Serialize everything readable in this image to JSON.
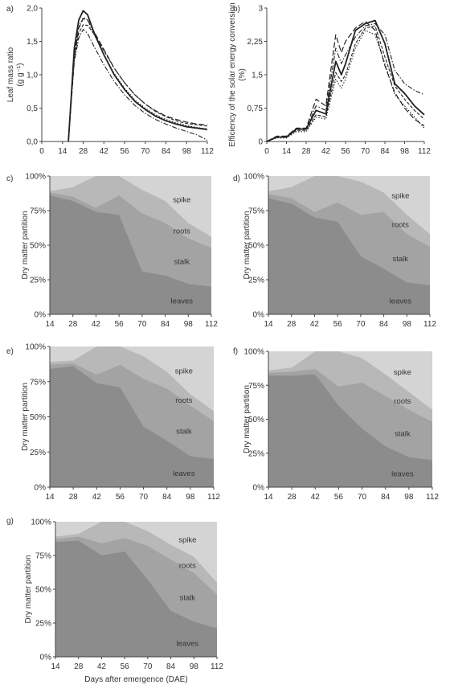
{
  "chart_data": [
    {
      "panel": "a)",
      "type": "line",
      "ylabel_lines": [
        "Leaf mass ratio",
        "(g g⁻¹)"
      ],
      "x_ticks": [
        "0",
        "14",
        "28",
        "42",
        "56",
        "70",
        "84",
        "98",
        "112"
      ],
      "y_ticks": [
        "0,0",
        "0,5",
        "1,0",
        "1,5",
        "2,0"
      ],
      "xlim": [
        0,
        112
      ],
      "ylim": [
        0,
        2.0
      ],
      "series": [
        {
          "style": "solid",
          "x": [
            18,
            20,
            22,
            25,
            28,
            31,
            35,
            42,
            49,
            56,
            63,
            70,
            77,
            84,
            91,
            98,
            105,
            112
          ],
          "y": [
            0,
            0.7,
            1.4,
            1.82,
            1.96,
            1.9,
            1.65,
            1.3,
            1.0,
            0.78,
            0.6,
            0.48,
            0.38,
            0.31,
            0.26,
            0.22,
            0.2,
            0.18
          ]
        },
        {
          "style": "long-dash",
          "x": [
            18,
            20,
            22,
            25,
            28,
            31,
            35,
            42,
            49,
            56,
            63,
            70,
            77,
            84,
            91,
            98,
            105,
            112
          ],
          "y": [
            0,
            0.7,
            1.3,
            1.7,
            1.84,
            1.82,
            1.66,
            1.38,
            1.1,
            0.88,
            0.7,
            0.56,
            0.46,
            0.38,
            0.33,
            0.29,
            0.26,
            0.25
          ]
        },
        {
          "style": "short-dash",
          "x": [
            18,
            20,
            22,
            25,
            28,
            31,
            35,
            42,
            49,
            56,
            63,
            70,
            77,
            84,
            91,
            98,
            105,
            112
          ],
          "y": [
            0,
            0.65,
            1.25,
            1.62,
            1.75,
            1.74,
            1.62,
            1.36,
            1.1,
            0.88,
            0.7,
            0.56,
            0.45,
            0.37,
            0.31,
            0.27,
            0.25,
            0.23
          ]
        },
        {
          "style": "dash-dot",
          "x": [
            18,
            20,
            22,
            25,
            28,
            31,
            35,
            42,
            49,
            56,
            63,
            70,
            77,
            84,
            91,
            98,
            105,
            112
          ],
          "y": [
            0,
            0.6,
            1.2,
            1.55,
            1.68,
            1.62,
            1.44,
            1.15,
            0.9,
            0.7,
            0.54,
            0.42,
            0.33,
            0.26,
            0.2,
            0.15,
            0.1,
            0.02
          ]
        },
        {
          "style": "dotted",
          "x": [
            18,
            20,
            22,
            25,
            28,
            31,
            35,
            42,
            49,
            56,
            63,
            70,
            77,
            84,
            91,
            98,
            105,
            112
          ],
          "y": [
            0,
            0.68,
            1.32,
            1.72,
            1.86,
            1.82,
            1.62,
            1.3,
            1.02,
            0.8,
            0.62,
            0.5,
            0.4,
            0.33,
            0.28,
            0.24,
            0.21,
            0.19
          ]
        }
      ]
    },
    {
      "panel": "b)",
      "type": "line",
      "ylabel_lines": [
        "Efficiency of the solar energy conversion",
        "(%)"
      ],
      "x_ticks": [
        "0",
        "14",
        "28",
        "42",
        "56",
        "70",
        "84",
        "98",
        "112"
      ],
      "y_ticks": [
        "0",
        "0,75",
        "1,5",
        "2,25",
        "3"
      ],
      "xlim": [
        0,
        112
      ],
      "ylim": [
        0,
        3
      ],
      "series": [
        {
          "style": "solid",
          "x": [
            0,
            7,
            14,
            21,
            28,
            35,
            42,
            49,
            53,
            56,
            63,
            70,
            77,
            84,
            91,
            98,
            105,
            112
          ],
          "y": [
            0,
            0.1,
            0.1,
            0.28,
            0.28,
            0.7,
            0.62,
            1.8,
            1.5,
            1.75,
            2.5,
            2.65,
            2.72,
            2.2,
            1.3,
            1.08,
            0.8,
            0.6
          ]
        },
        {
          "style": "long-dash",
          "x": [
            0,
            7,
            14,
            21,
            28,
            35,
            42,
            49,
            53,
            56,
            63,
            70,
            77,
            84,
            91,
            98,
            105,
            112
          ],
          "y": [
            0,
            0.12,
            0.12,
            0.3,
            0.3,
            0.95,
            0.8,
            2.4,
            2.0,
            2.25,
            2.55,
            2.7,
            2.5,
            1.7,
            1.1,
            0.75,
            0.5,
            0.35
          ]
        },
        {
          "style": "short-dash",
          "x": [
            0,
            7,
            14,
            21,
            28,
            35,
            42,
            49,
            53,
            56,
            63,
            70,
            77,
            84,
            91,
            98,
            105,
            112
          ],
          "y": [
            0,
            0.1,
            0.1,
            0.25,
            0.25,
            0.6,
            0.55,
            1.55,
            1.35,
            1.5,
            2.2,
            2.55,
            2.6,
            1.9,
            1.25,
            0.95,
            0.7,
            0.5
          ]
        },
        {
          "style": "dash-dot",
          "x": [
            0,
            7,
            14,
            21,
            28,
            35,
            42,
            49,
            53,
            56,
            63,
            70,
            77,
            84,
            91,
            98,
            105,
            112
          ],
          "y": [
            0,
            0.1,
            0.1,
            0.28,
            0.28,
            0.8,
            0.7,
            2.1,
            1.75,
            1.95,
            2.35,
            2.6,
            2.65,
            2.4,
            1.6,
            1.3,
            1.15,
            1.05
          ]
        },
        {
          "style": "dotted",
          "x": [
            0,
            7,
            14,
            21,
            28,
            35,
            42,
            49,
            53,
            56,
            63,
            70,
            77,
            84,
            91,
            98,
            105,
            112
          ],
          "y": [
            0,
            0.08,
            0.08,
            0.22,
            0.22,
            0.55,
            0.5,
            1.4,
            1.2,
            1.4,
            2.1,
            2.5,
            2.4,
            1.75,
            1.05,
            0.8,
            0.55,
            0.3
          ]
        }
      ]
    },
    {
      "panel": "c)",
      "type": "area",
      "ylabel": "Dry matter partition",
      "xlabel": "",
      "x": [
        14,
        28,
        42,
        56,
        70,
        84,
        98,
        112
      ],
      "y_ticks": [
        "0%",
        "25%",
        "50%",
        "75%",
        "100%"
      ],
      "stack_labels": [
        "spike",
        "roots",
        "stalk",
        "leaves"
      ],
      "cumulative": {
        "leaves": [
          86,
          82,
          74,
          72,
          31,
          28,
          22,
          20
        ],
        "stalk": [
          88,
          85,
          77,
          86,
          73,
          66,
          55,
          48
        ],
        "roots": [
          89,
          92,
          100,
          100,
          90,
          82,
          66,
          56
        ],
        "spike": [
          100,
          100,
          100,
          100,
          100,
          100,
          100,
          100
        ]
      }
    },
    {
      "panel": "d)",
      "type": "area",
      "ylabel": "Dry matter partition",
      "xlabel": "",
      "x": [
        14,
        28,
        42,
        56,
        70,
        84,
        98,
        112
      ],
      "y_ticks": [
        "0%",
        "25%",
        "50%",
        "75%",
        "100%"
      ],
      "stack_labels": [
        "spike",
        "roots",
        "stalk",
        "leaves"
      ],
      "cumulative": {
        "leaves": [
          84,
          80,
          70,
          67,
          42,
          33,
          23,
          21
        ],
        "stalk": [
          87,
          84,
          74,
          81,
          72,
          74,
          58,
          49
        ],
        "roots": [
          89,
          92,
          100,
          100,
          96,
          88,
          72,
          58
        ],
        "spike": [
          100,
          100,
          100,
          100,
          100,
          100,
          100,
          100
        ]
      }
    },
    {
      "panel": "e)",
      "type": "area",
      "ylabel": "Dry matter partition",
      "xlabel": "",
      "x": [
        14,
        28,
        42,
        56,
        70,
        84,
        98,
        112
      ],
      "y_ticks": [
        "0%",
        "25%",
        "50%",
        "75%",
        "100%"
      ],
      "stack_labels": [
        "spike",
        "roots",
        "stalk",
        "leaves"
      ],
      "cumulative": {
        "leaves": [
          84,
          86,
          74,
          71,
          43,
          33,
          22,
          20
        ],
        "stalk": [
          87,
          88,
          80,
          87,
          77,
          70,
          58,
          47
        ],
        "roots": [
          89,
          90,
          100,
          100,
          93,
          82,
          66,
          54
        ],
        "spike": [
          100,
          100,
          100,
          100,
          100,
          100,
          100,
          100
        ]
      }
    },
    {
      "panel": "f)",
      "type": "area",
      "ylabel": "Dry matter partition",
      "xlabel": "",
      "x": [
        14,
        28,
        42,
        56,
        70,
        84,
        98,
        112
      ],
      "y_ticks": [
        "0%",
        "25%",
        "50%",
        "75%",
        "100%"
      ],
      "stack_labels": [
        "spike",
        "roots",
        "stalk",
        "leaves"
      ],
      "cumulative": {
        "leaves": [
          82,
          82,
          83,
          60,
          43,
          30,
          22,
          20
        ],
        "stalk": [
          84,
          85,
          87,
          74,
          77,
          67,
          57,
          48
        ],
        "roots": [
          86,
          88,
          100,
          100,
          95,
          83,
          70,
          57
        ],
        "spike": [
          100,
          100,
          100,
          100,
          100,
          100,
          100,
          100
        ]
      }
    },
    {
      "panel": "g)",
      "type": "area",
      "ylabel": "Dry matter partition",
      "xlabel": "Days after emergence (DAE)",
      "x": [
        14,
        28,
        42,
        56,
        70,
        84,
        98,
        112
      ],
      "y_ticks": [
        "0%",
        "25%",
        "50%",
        "75%",
        "100%"
      ],
      "stack_labels": [
        "spike",
        "roots",
        "stalk",
        "leaves"
      ],
      "cumulative": {
        "leaves": [
          85,
          86,
          75,
          78,
          57,
          34,
          26,
          21
        ],
        "stalk": [
          87,
          89,
          84,
          88,
          82,
          72,
          62,
          46
        ],
        "roots": [
          89,
          91,
          100,
          100,
          93,
          83,
          74,
          55
        ],
        "spike": [
          100,
          100,
          100,
          100,
          100,
          100,
          100,
          100
        ]
      }
    }
  ],
  "colors": {
    "leaves": "#8c8c8c",
    "stalk": "#a3a3a3",
    "roots": "#b8b8b8",
    "spike": "#d4d4d4",
    "axis": "#444444",
    "line": "#222222"
  }
}
